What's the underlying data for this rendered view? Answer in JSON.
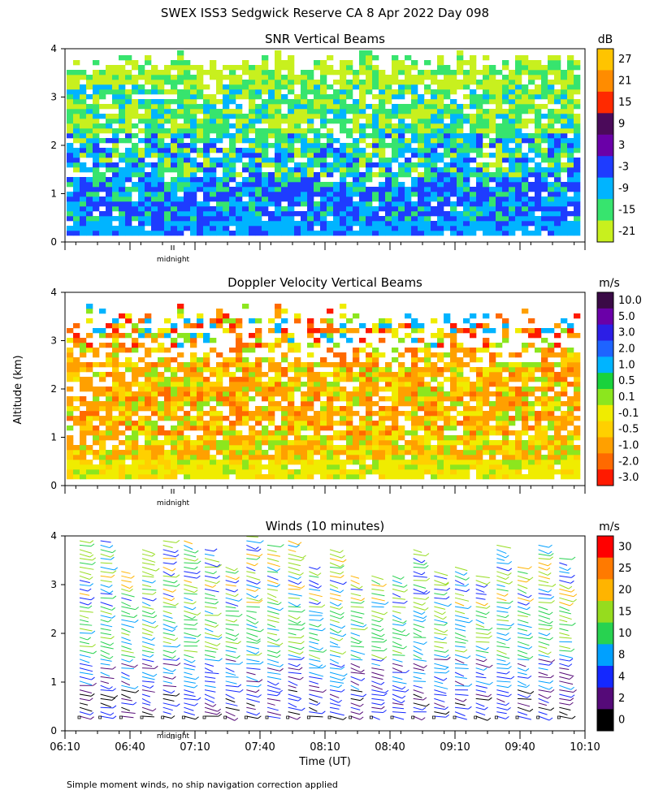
{
  "figure": {
    "title": "SWEX ISS3 Sedgwick Reserve CA   8 Apr 2022 Day 098",
    "ylabel": "Altitude (km)",
    "xlabel": "Time (UT)",
    "footnote": "Simple moment winds, no ship navigation correction applied",
    "midnight_label": "midnight",
    "x_ticks": [
      "06:10",
      "06:40",
      "07:10",
      "07:40",
      "08:10",
      "08:40",
      "09:10",
      "09:40",
      "10:10"
    ]
  },
  "chart_data": [
    {
      "type": "heatmap",
      "title": "SNR Vertical Beams",
      "unit": "dB",
      "x_range": [
        "06:10",
        "10:10"
      ],
      "ylim": [
        0,
        4
      ],
      "y_ticks": [
        "0",
        "1",
        "2",
        "3",
        "4"
      ],
      "colorbar": {
        "labels": [
          "27",
          "21",
          "15",
          "9",
          "3",
          "-3",
          "-9",
          "-15",
          "-21"
        ],
        "colors": [
          "#ffc400",
          "#ff8c00",
          "#ff2a00",
          "#4b0a5a",
          "#6a00a8",
          "#1e3cff",
          "#00b4ff",
          "#37e46e",
          "#c8f01e"
        ]
      },
      "features": {
        "dominant_0_to_1.2km": "-9 to -3 dB (blue/cyan)",
        "dominant_1.2_to_3.6km": "-21 to -9 dB (green/cyan)",
        "data_top_km": 3.9
      }
    },
    {
      "type": "heatmap",
      "title": "Doppler Velocity Vertical Beams",
      "unit": "m/s",
      "x_range": [
        "06:10",
        "10:10"
      ],
      "ylim": [
        0,
        4
      ],
      "y_ticks": [
        "0",
        "1",
        "2",
        "3",
        "4"
      ],
      "colorbar": {
        "labels": [
          "10.0",
          "5.0",
          "3.0",
          "2.0",
          "1.0",
          "0.5",
          "0.1",
          "-0.1",
          "-0.5",
          "-1.0",
          "-2.0",
          "-3.0"
        ],
        "colors": [
          "#3a0a46",
          "#6a00a8",
          "#2c1ee6",
          "#1e64ff",
          "#00b4ff",
          "#19d23c",
          "#8ce61e",
          "#f0ec00",
          "#ffd000",
          "#ffa000",
          "#ff6a00",
          "#ff1a00"
        ]
      },
      "features": {
        "dominant_0_to_0.5km": "-0.1 to 0.1 m/s (yellow)",
        "dominant_0.5_to_3km": "-2.0 to -0.5 m/s (orange)",
        "data_top_km": 3.7
      }
    },
    {
      "type": "scatter",
      "title": "Winds (10 minutes)",
      "unit": "m/s",
      "x_range": [
        "06:10",
        "10:10"
      ],
      "ylim": [
        0,
        4
      ],
      "y_ticks": [
        "0",
        "1",
        "2",
        "3",
        "4"
      ],
      "profile_interval_min": 10,
      "colorbar": {
        "labels": [
          "30",
          "25",
          "20",
          "15",
          "10",
          "8",
          "4",
          "2",
          "0"
        ],
        "colors": [
          "#ff0000",
          "#ff7a00",
          "#ffb400",
          "#96dc1e",
          "#28d250",
          "#00a0ff",
          "#1428ff",
          "#550a78",
          "#000000"
        ]
      },
      "features": {
        "speed_0_to_1.5km": "2-8 m/s",
        "speed_1.5_to_3.5km": "8-20 m/s",
        "direction": "westerly/northwesterly barbs"
      }
    }
  ]
}
